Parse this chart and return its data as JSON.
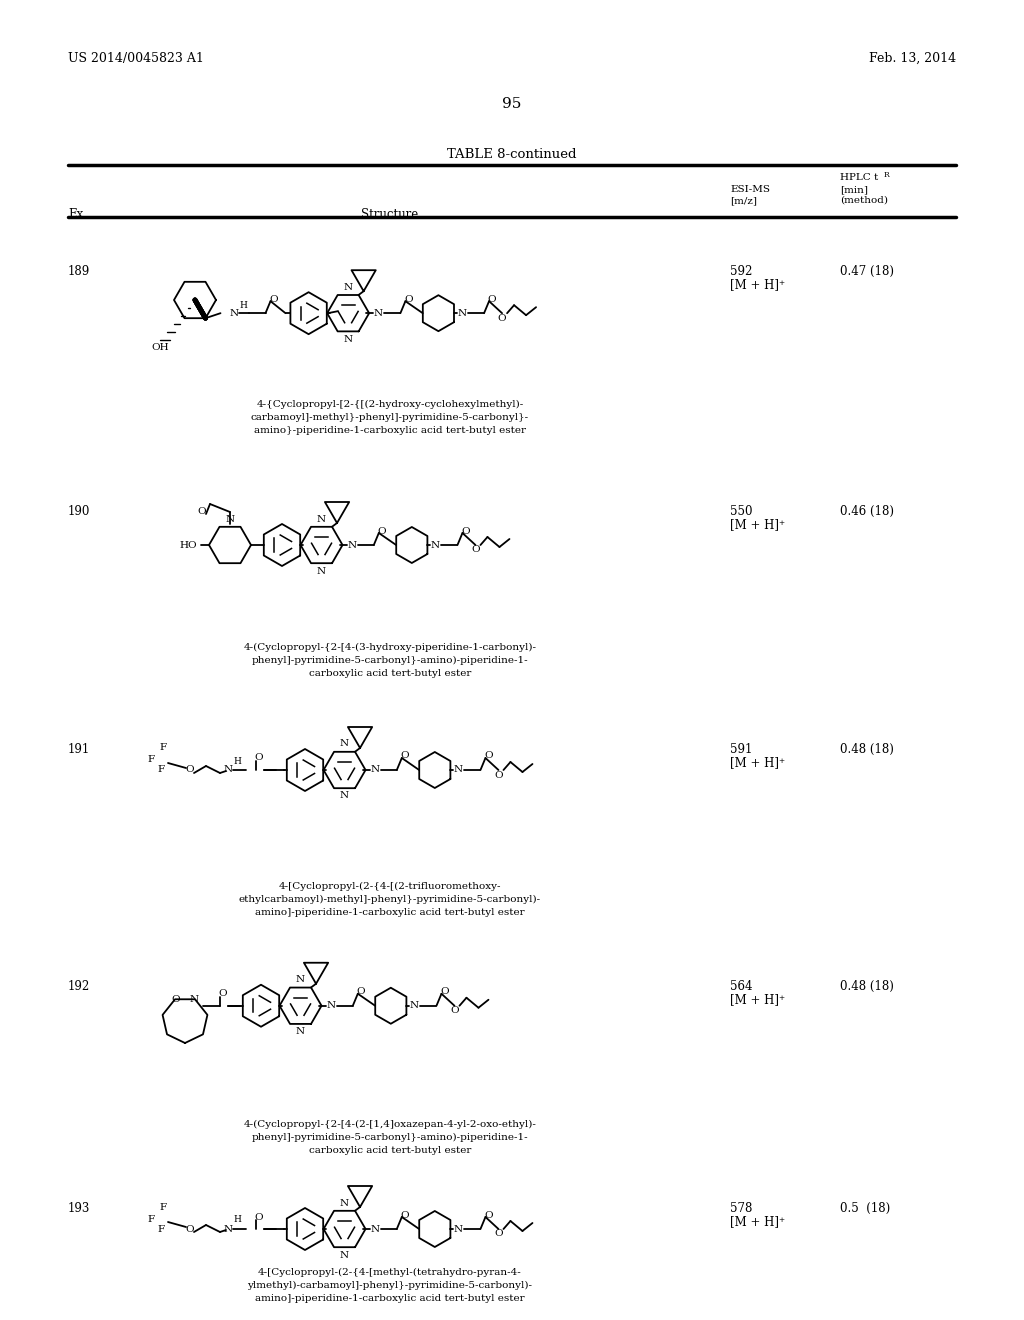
{
  "bg": "#ffffff",
  "header_left": "US 2014/0045823 A1",
  "header_right": "Feb. 13, 2014",
  "page_num": "95",
  "table_title": "TABLE 8-continued",
  "col_ex": "Ex.",
  "col_struct": "Structure",
  "col_esi": "ESI-MS\n[m/z]",
  "col_hplc_pre": "HPLC t",
  "col_hplc_super": "R",
  "col_hplc_post": "[min]\n(method)",
  "entries": [
    {
      "ex": "189",
      "esi": "592\n[M + H]⁺",
      "hplc": "0.47 (18)",
      "name": "4-{Cyclopropyl-[2-{[(2-hydroxy-cyclohexylmethyl)-\ncarbamoyl]-methyl}-phenyl]-pyrimidine-5-carbonyl}-\namino}-piperidine-1-carboxylic acid tert-butyl ester"
    },
    {
      "ex": "190",
      "esi": "550\n[M + H]⁺",
      "hplc": "0.46 (18)",
      "name": "4-(Cyclopropyl-{2-[4-(3-hydroxy-piperidine-1-carbonyl)-\nphenyl]-pyrimidine-5-carbonyl}-amino)-piperidine-1-\ncarboxylic acid tert-butyl ester"
    },
    {
      "ex": "191",
      "esi": "591\n[M + H]⁺",
      "hplc": "0.48 (18)",
      "name": "4-[Cyclopropyl-(2-{4-[(2-trifluoromethoxy-\nethylcarbamoyl)-methyl]-phenyl}-pyrimidine-5-carbonyl)-\namino]-piperidine-1-carboxylic acid tert-butyl ester"
    },
    {
      "ex": "192",
      "esi": "564\n[M + H]⁺",
      "hplc": "0.48 (18)",
      "name": "4-(Cyclopropyl-{2-[4-(2-[1,4]oxazepan-4-yl-2-oxo-ethyl)-\nphenyl]-pyrimidine-5-carbonyl}-amino)-piperidine-1-\ncarboxylic acid tert-butyl ester"
    },
    {
      "ex": "193",
      "esi": "578\n[M + H]⁺",
      "hplc": "0.5  (18)",
      "name": "4-[Cyclopropyl-(2-{4-[methyl-(tetrahydro-pyran-4-\nylmethyl)-carbamoyl]-phenyl}-pyrimidine-5-carbonyl)-\namino]-piperidine-1-carboxylic acid tert-butyl ester"
    }
  ],
  "row_centers_y": [
    305,
    545,
    783,
    1020,
    1242
  ],
  "row_name_y": [
    400,
    643,
    882,
    1120,
    1268
  ]
}
